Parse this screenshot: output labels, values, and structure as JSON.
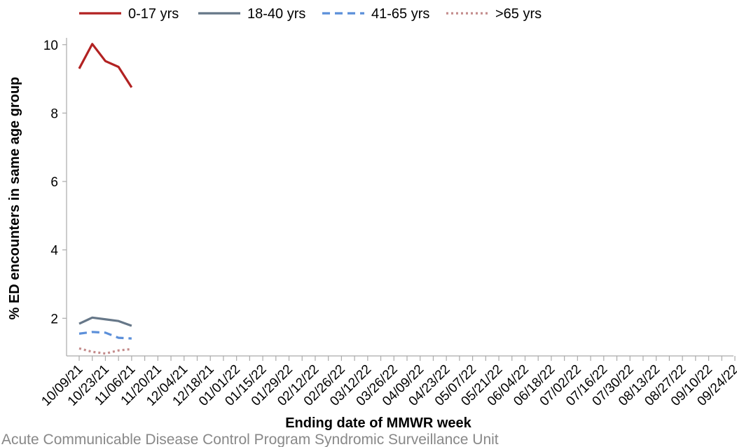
{
  "chart_data": {
    "type": "line",
    "xlabel": "Ending date of MMWR week",
    "ylabel": "% ED encounters in same age group",
    "ylim": [
      0.9,
      10.2
    ],
    "yticks": [
      2,
      4,
      6,
      8,
      10
    ],
    "grid": false,
    "legend_position": "top",
    "x_tick_labels": [
      "10/09/21",
      "10/23/21",
      "11/06/21",
      "11/20/21",
      "12/04/21",
      "12/18/21",
      "01/01/22",
      "01/15/22",
      "01/29/22",
      "02/12/22",
      "02/26/22",
      "03/12/22",
      "03/26/22",
      "04/09/22",
      "04/23/22",
      "05/07/22",
      "05/21/22",
      "06/04/22",
      "06/18/22",
      "07/02/22",
      "07/16/22",
      "07/30/22",
      "08/13/22",
      "08/27/22",
      "09/10/22",
      "09/24/22"
    ],
    "x_week_count": 52,
    "x": [
      "10/09/21",
      "10/16/21",
      "10/23/21",
      "10/30/21",
      "11/06/21"
    ],
    "series": [
      {
        "name": "0-17 yrs",
        "color": "#b22222",
        "dash": "solid",
        "values": [
          9.3,
          10.02,
          9.52,
          9.35,
          8.75
        ]
      },
      {
        "name": "18-40 yrs",
        "color": "#667788",
        "dash": "solid",
        "values": [
          1.84,
          2.02,
          1.97,
          1.92,
          1.78
        ]
      },
      {
        "name": "41-65 yrs",
        "color": "#5b8fd9",
        "dash": "dashed",
        "values": [
          1.55,
          1.6,
          1.58,
          1.43,
          1.41
        ]
      },
      {
        "name": ">65 yrs",
        "color": "#c48c8c",
        "dash": "dotted",
        "values": [
          1.12,
          1.02,
          0.97,
          1.06,
          1.1
        ]
      }
    ]
  },
  "footer": "Acute Communicable Disease Control Program Syndromic Surveillance Unit"
}
